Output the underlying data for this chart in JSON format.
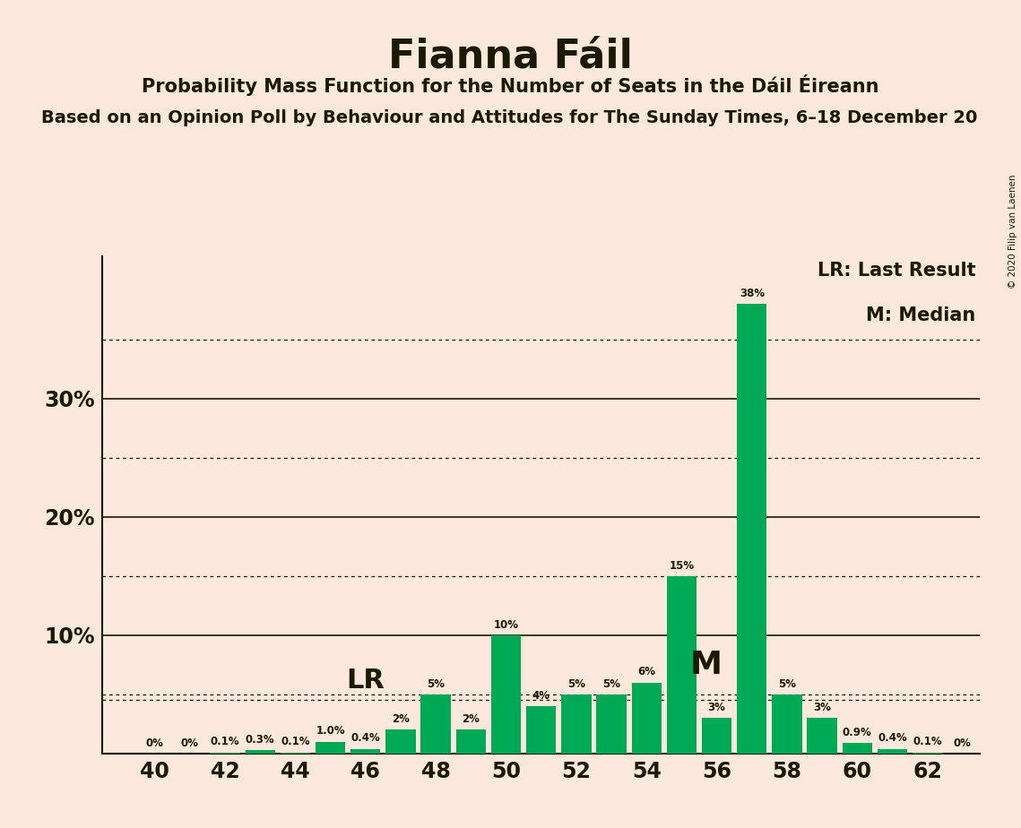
{
  "title": "Fianna Fáil",
  "subtitle": "Probability Mass Function for the Number of Seats in the Dáil Éireann",
  "subtitle2": "Based on an Opinion Poll by Behaviour and Attitudes for The Sunday Times, 6–18 December 20",
  "copyright": "© 2020 Filip van Laenen",
  "seats": [
    40,
    41,
    42,
    43,
    44,
    45,
    46,
    47,
    48,
    49,
    50,
    51,
    52,
    53,
    54,
    55,
    56,
    57,
    58,
    59,
    60,
    61,
    62
  ],
  "values": [
    0.0,
    0.0,
    0.1,
    0.3,
    0.1,
    1.0,
    0.4,
    2.0,
    5.0,
    2.0,
    10.0,
    4.0,
    5.0,
    5.0,
    6.0,
    15.0,
    3.0,
    38.0,
    5.0,
    3.0,
    0.9,
    0.4,
    0.1
  ],
  "labels": [
    "0%",
    "0%",
    "0.1%",
    "0.3%",
    "0.1%",
    "1.0%",
    "0.4%",
    "2%",
    "5%",
    "2%",
    "10%",
    "4%",
    "5%",
    "5%",
    "6%",
    "15%",
    "3%",
    "38%",
    "5%",
    "3%",
    "0.9%",
    "0.4%",
    "0.1%"
  ],
  "show_zero_at_end": true,
  "end_zero_label": "0%",
  "bar_color": "#00aa55",
  "background_color": "#fce8dc",
  "text_color": "#1a1a00",
  "lr_seat": 45,
  "lr_value": 4.5,
  "median_seat": 55,
  "median_bar_value": 15.0,
  "ylim_max": 42,
  "dotted_lines": [
    5.0,
    15.0,
    25.0,
    35.0
  ],
  "solid_lines": [
    10.0,
    20.0,
    30.0
  ],
  "xlim": [
    38.5,
    63.5
  ],
  "xticks": [
    40,
    42,
    44,
    46,
    48,
    50,
    52,
    54,
    56,
    58,
    60,
    62
  ]
}
